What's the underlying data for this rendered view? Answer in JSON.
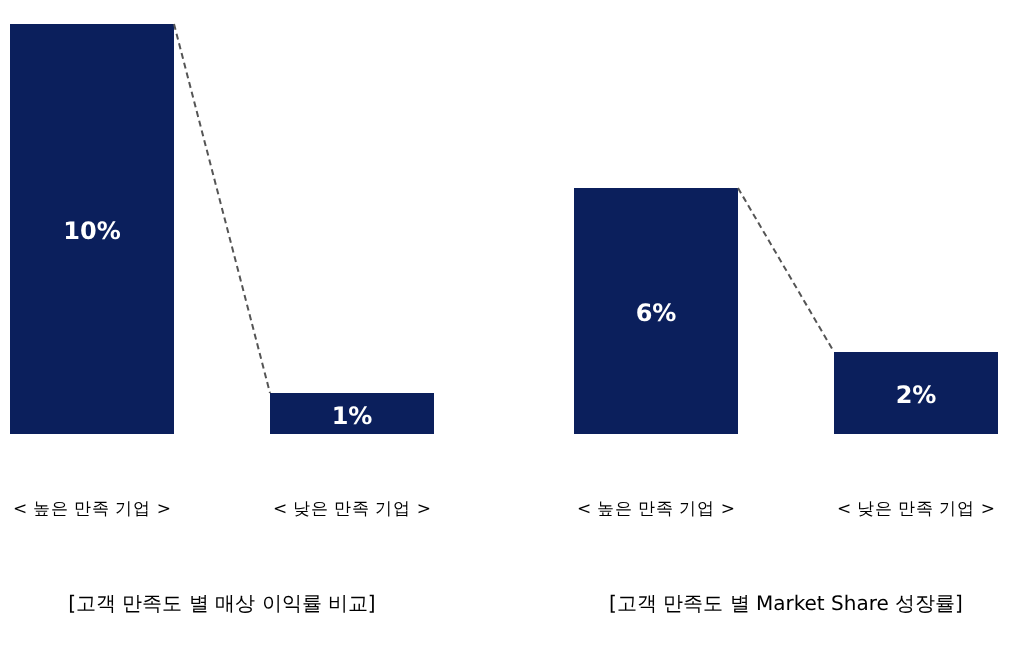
{
  "chart_data": [
    {
      "type": "bar",
      "title": "[고객 만족도 별 매상 이익률 비교]",
      "categories": [
        "< 높은 만족 기업 >",
        "< 낮은 만족 기업 >"
      ],
      "values": [
        10,
        1
      ],
      "value_labels": [
        "10%",
        "1%"
      ],
      "color": "#0b1f5c"
    },
    {
      "type": "bar",
      "title": "[고객 만족도 별 Market Share 성장률]",
      "categories": [
        "< 높은 만족 기업 >",
        "< 낮은 만족 기업 >"
      ],
      "values": [
        6,
        2
      ],
      "value_labels": [
        "6%",
        "2%"
      ],
      "color": "#0b1f5c"
    }
  ]
}
